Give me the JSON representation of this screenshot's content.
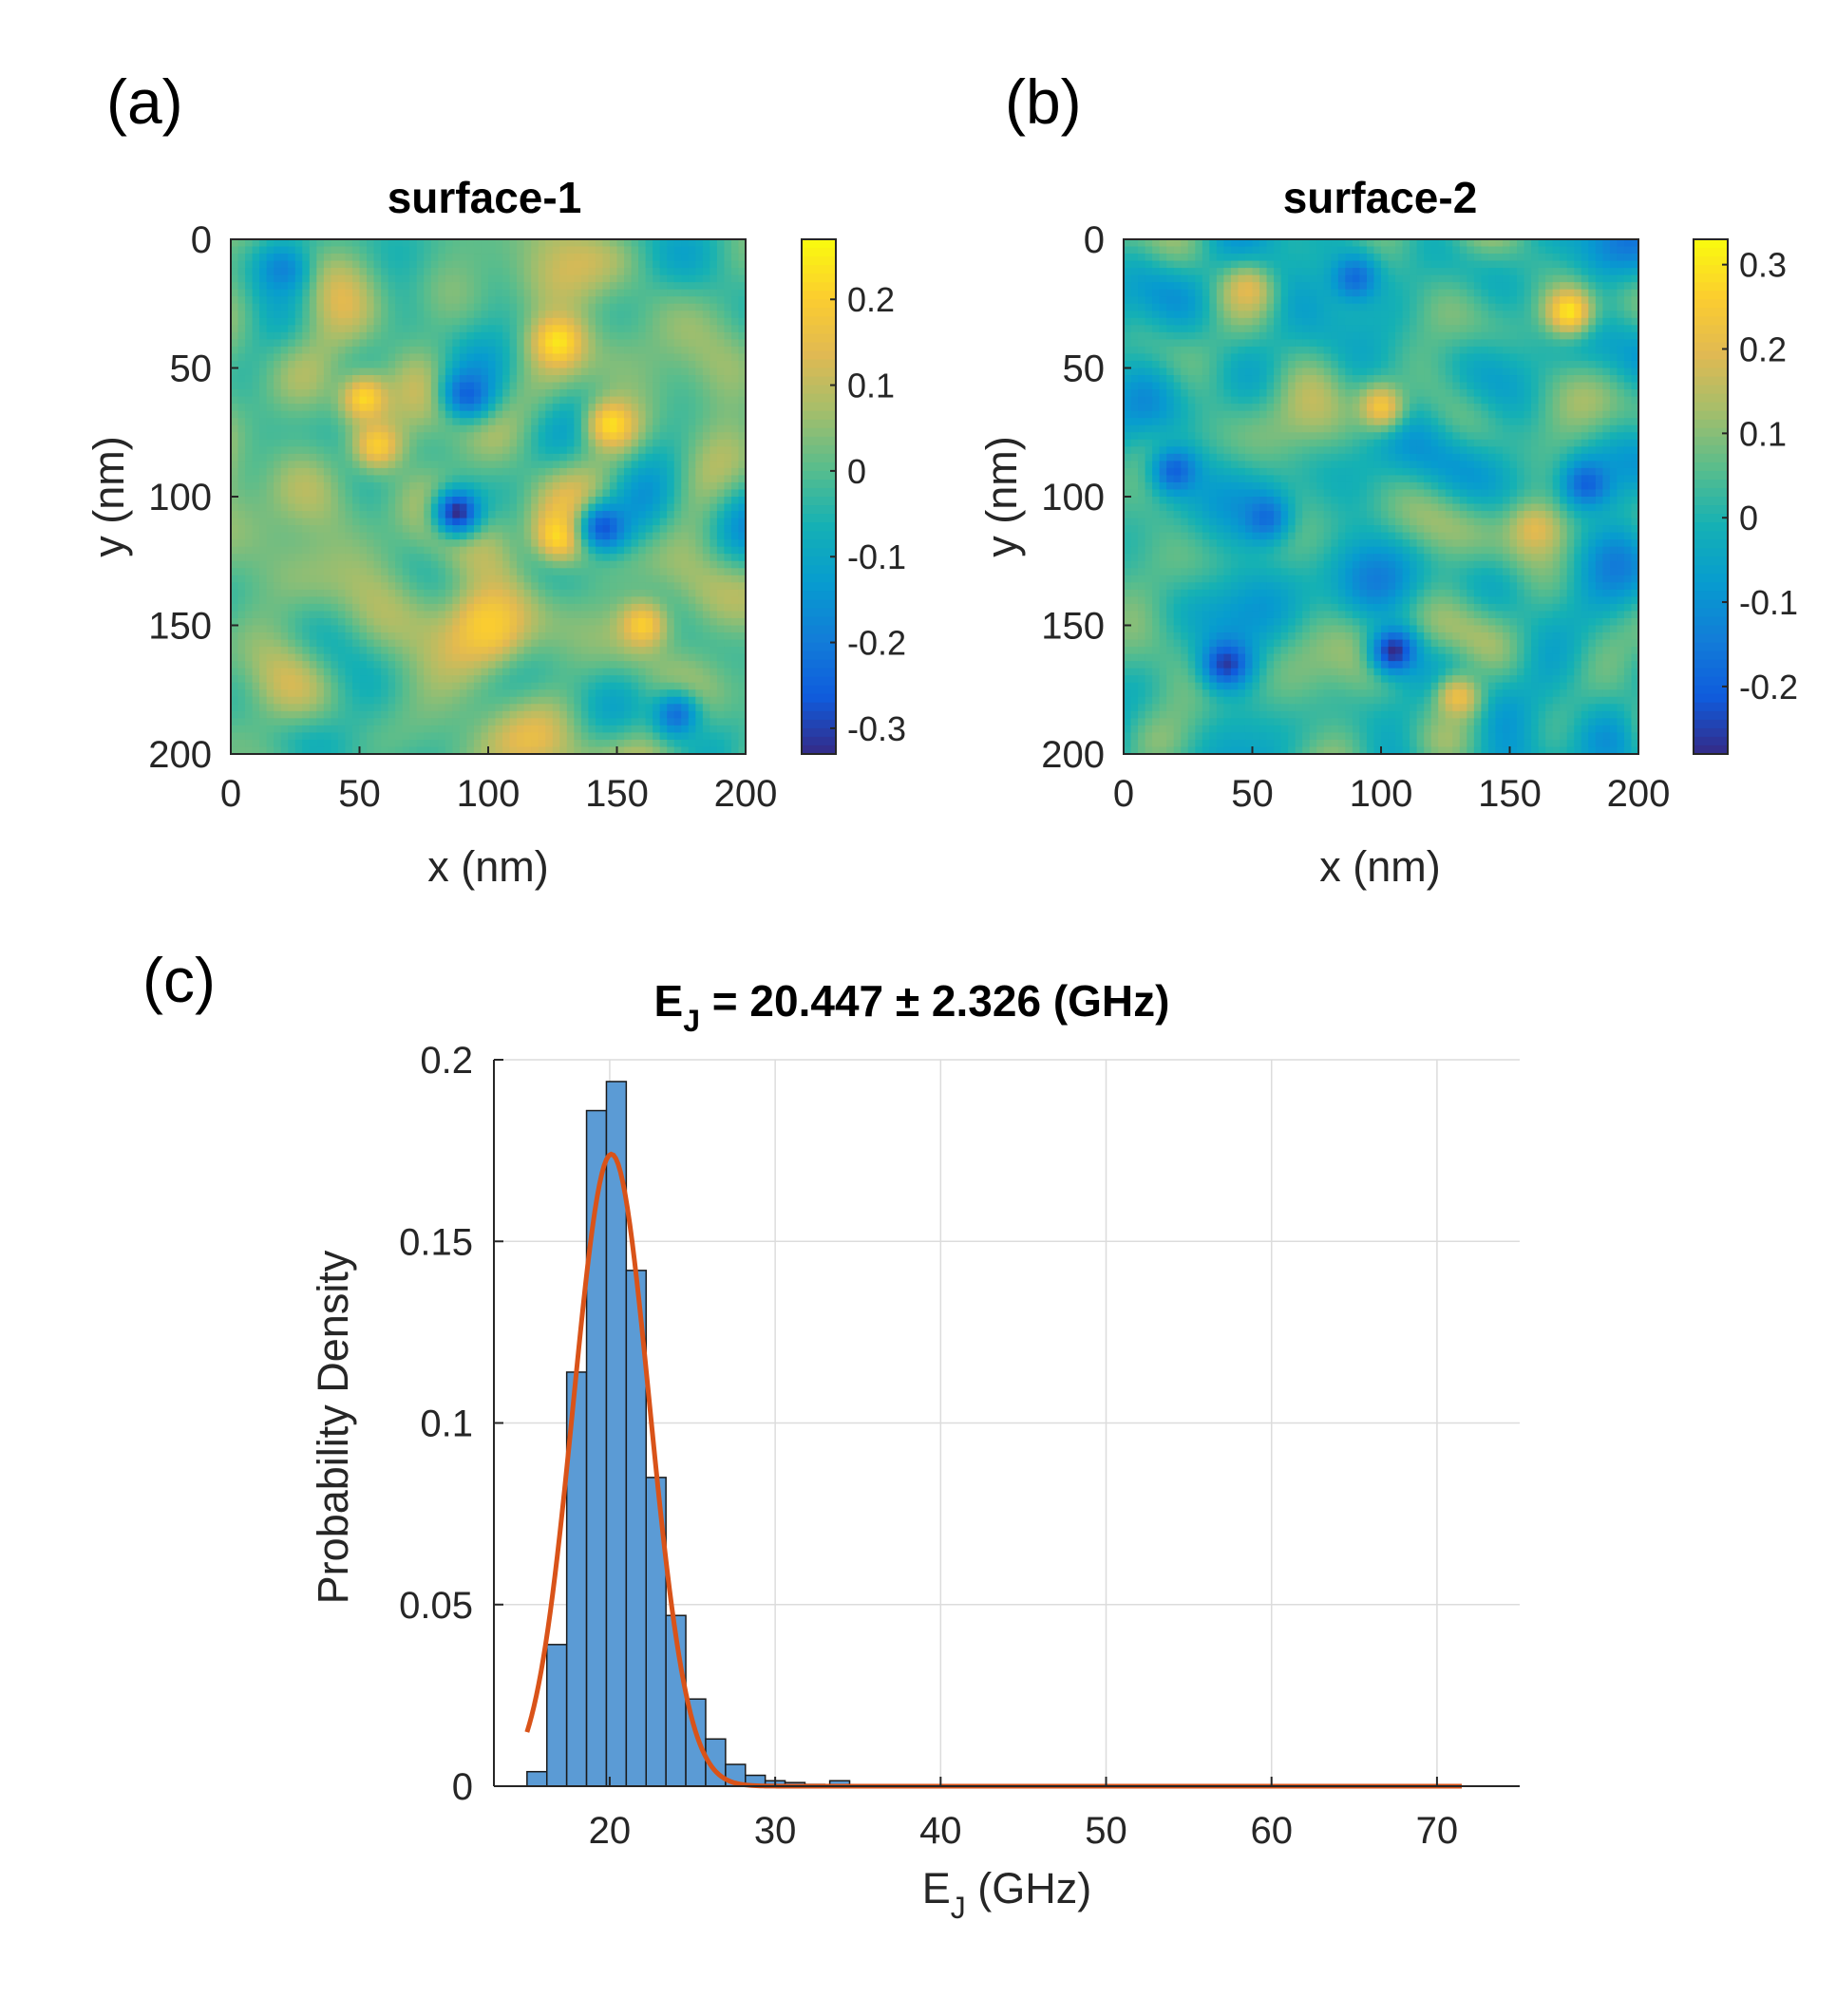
{
  "panels": {
    "a": "(a)",
    "b": "(b)",
    "c": "(c)"
  },
  "chart_data": [
    {
      "type": "heatmap",
      "title": "surface-1",
      "xlabel": "x (nm)",
      "ylabel": "y (nm)",
      "xlim": [
        0,
        200
      ],
      "ylim": [
        0,
        200
      ],
      "y_direction": "reversed",
      "xticks": [
        0,
        50,
        100,
        150,
        200
      ],
      "yticks": [
        0,
        50,
        100,
        150,
        200
      ],
      "colormap": "parula",
      "colorbar": {
        "range": [
          -0.33,
          0.27
        ],
        "ticks": [
          -0.3,
          -0.2,
          -0.1,
          0,
          0.1,
          0.2
        ],
        "tick_labels": [
          "-0.3",
          "-0.2",
          "-0.1",
          "0",
          "0.1",
          "0.2"
        ]
      },
      "features": [
        {
          "x": 128,
          "y": 115,
          "v": 0.24
        },
        {
          "x": 52,
          "y": 62,
          "v": 0.22
        },
        {
          "x": 57,
          "y": 80,
          "v": 0.2
        },
        {
          "x": 127,
          "y": 40,
          "v": 0.24
        },
        {
          "x": 148,
          "y": 72,
          "v": 0.23
        },
        {
          "x": 160,
          "y": 150,
          "v": 0.2
        },
        {
          "x": 100,
          "y": 150,
          "v": 0.2
        },
        {
          "x": 88,
          "y": 106,
          "v": -0.33
        },
        {
          "x": 145,
          "y": 112,
          "v": -0.27
        },
        {
          "x": 92,
          "y": 60,
          "v": -0.25
        },
        {
          "x": 173,
          "y": 185,
          "v": -0.22
        },
        {
          "x": 20,
          "y": 12,
          "v": -0.18
        }
      ]
    },
    {
      "type": "heatmap",
      "title": "surface-2",
      "xlabel": "x (nm)",
      "ylabel": "y (nm)",
      "xlim": [
        0,
        200
      ],
      "ylim": [
        0,
        200
      ],
      "y_direction": "reversed",
      "xticks": [
        0,
        50,
        100,
        150,
        200
      ],
      "yticks": [
        0,
        50,
        100,
        150,
        200
      ],
      "colormap": "parula",
      "colorbar": {
        "range": [
          -0.28,
          0.33
        ],
        "ticks": [
          -0.2,
          -0.1,
          0,
          0.1,
          0.2,
          0.3
        ],
        "tick_labels": [
          "-0.2",
          "-0.1",
          "0",
          "0.1",
          "0.2",
          "0.3"
        ]
      },
      "features": [
        {
          "x": 173,
          "y": 28,
          "v": 0.3
        },
        {
          "x": 100,
          "y": 65,
          "v": 0.24
        },
        {
          "x": 130,
          "y": 178,
          "v": 0.22
        },
        {
          "x": 48,
          "y": 20,
          "v": 0.2
        },
        {
          "x": 160,
          "y": 113,
          "v": 0.2
        },
        {
          "x": 40,
          "y": 165,
          "v": -0.26
        },
        {
          "x": 105,
          "y": 160,
          "v": -0.28
        },
        {
          "x": 180,
          "y": 95,
          "v": -0.2
        },
        {
          "x": 20,
          "y": 90,
          "v": -0.2
        },
        {
          "x": 90,
          "y": 15,
          "v": -0.18
        },
        {
          "x": 55,
          "y": 108,
          "v": -0.18
        }
      ]
    },
    {
      "type": "bar",
      "subtype": "histogram_with_fit",
      "title": "E_J = 20.447 ± 2.326 (GHz)",
      "title_parts": {
        "pre": "E",
        "sub": "J",
        "post": " = 20.447 ± 2.326 (GHz)"
      },
      "xlabel": "E_J (GHz)",
      "xlabel_parts": {
        "pre": "E",
        "sub": "J",
        "post": " (GHz)"
      },
      "ylabel": "Probability Density",
      "xlim": [
        13,
        75
      ],
      "ylim": [
        0,
        0.2
      ],
      "grid": true,
      "xticks": [
        20,
        30,
        40,
        50,
        60,
        70
      ],
      "yticks": [
        0,
        0.05,
        0.1,
        0.15,
        0.2
      ],
      "ytick_labels": [
        "0",
        "0.05",
        "0.1",
        "0.15",
        "0.2"
      ],
      "bin_width": 1.2,
      "bin_start": 15.0,
      "bar_color": "#5b9bd5",
      "values": [
        0.004,
        0.039,
        0.114,
        0.186,
        0.194,
        0.142,
        0.085,
        0.047,
        0.024,
        0.013,
        0.006,
        0.003,
        0.0015,
        0.001,
        0.0005,
        0.0003,
        0.0002,
        0.0015
      ],
      "fit": {
        "name": "fit",
        "color": "#d95319",
        "type": "normal",
        "mu": 20.1,
        "sigma": 2.3,
        "x_range": [
          15.0,
          71.5
        ]
      }
    }
  ]
}
